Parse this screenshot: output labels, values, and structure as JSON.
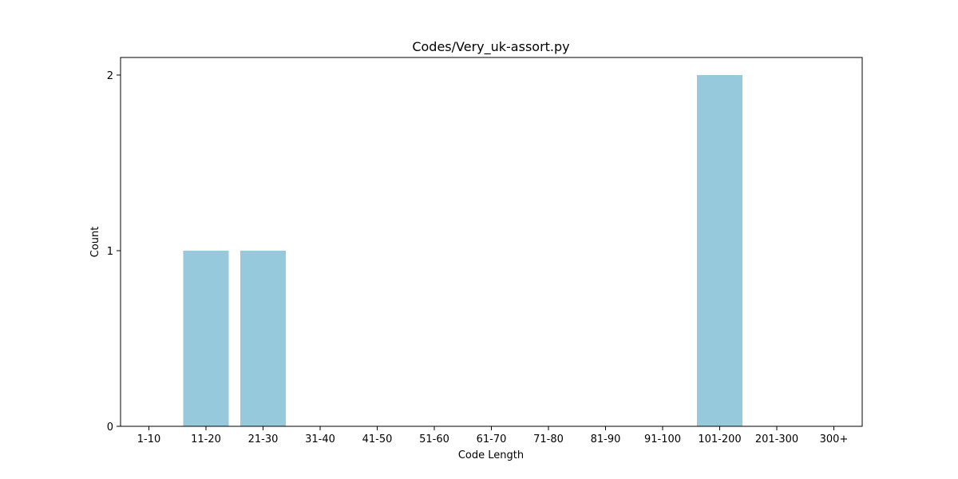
{
  "chart_data": {
    "type": "bar",
    "title": "Codes/Very_uk-assort.py",
    "xlabel": "Code Length",
    "ylabel": "Count",
    "categories": [
      "1-10",
      "11-20",
      "21-30",
      "31-40",
      "41-50",
      "51-60",
      "61-70",
      "71-80",
      "81-90",
      "91-100",
      "101-200",
      "201-300",
      "300+"
    ],
    "values": [
      0,
      1,
      1,
      0,
      0,
      0,
      0,
      0,
      0,
      0,
      2,
      0,
      0
    ],
    "ylim": [
      0,
      2.1
    ],
    "yticks": [
      "0",
      "1",
      "2"
    ],
    "bar_color": "#96c9dc",
    "grid": false,
    "legend": "none"
  }
}
